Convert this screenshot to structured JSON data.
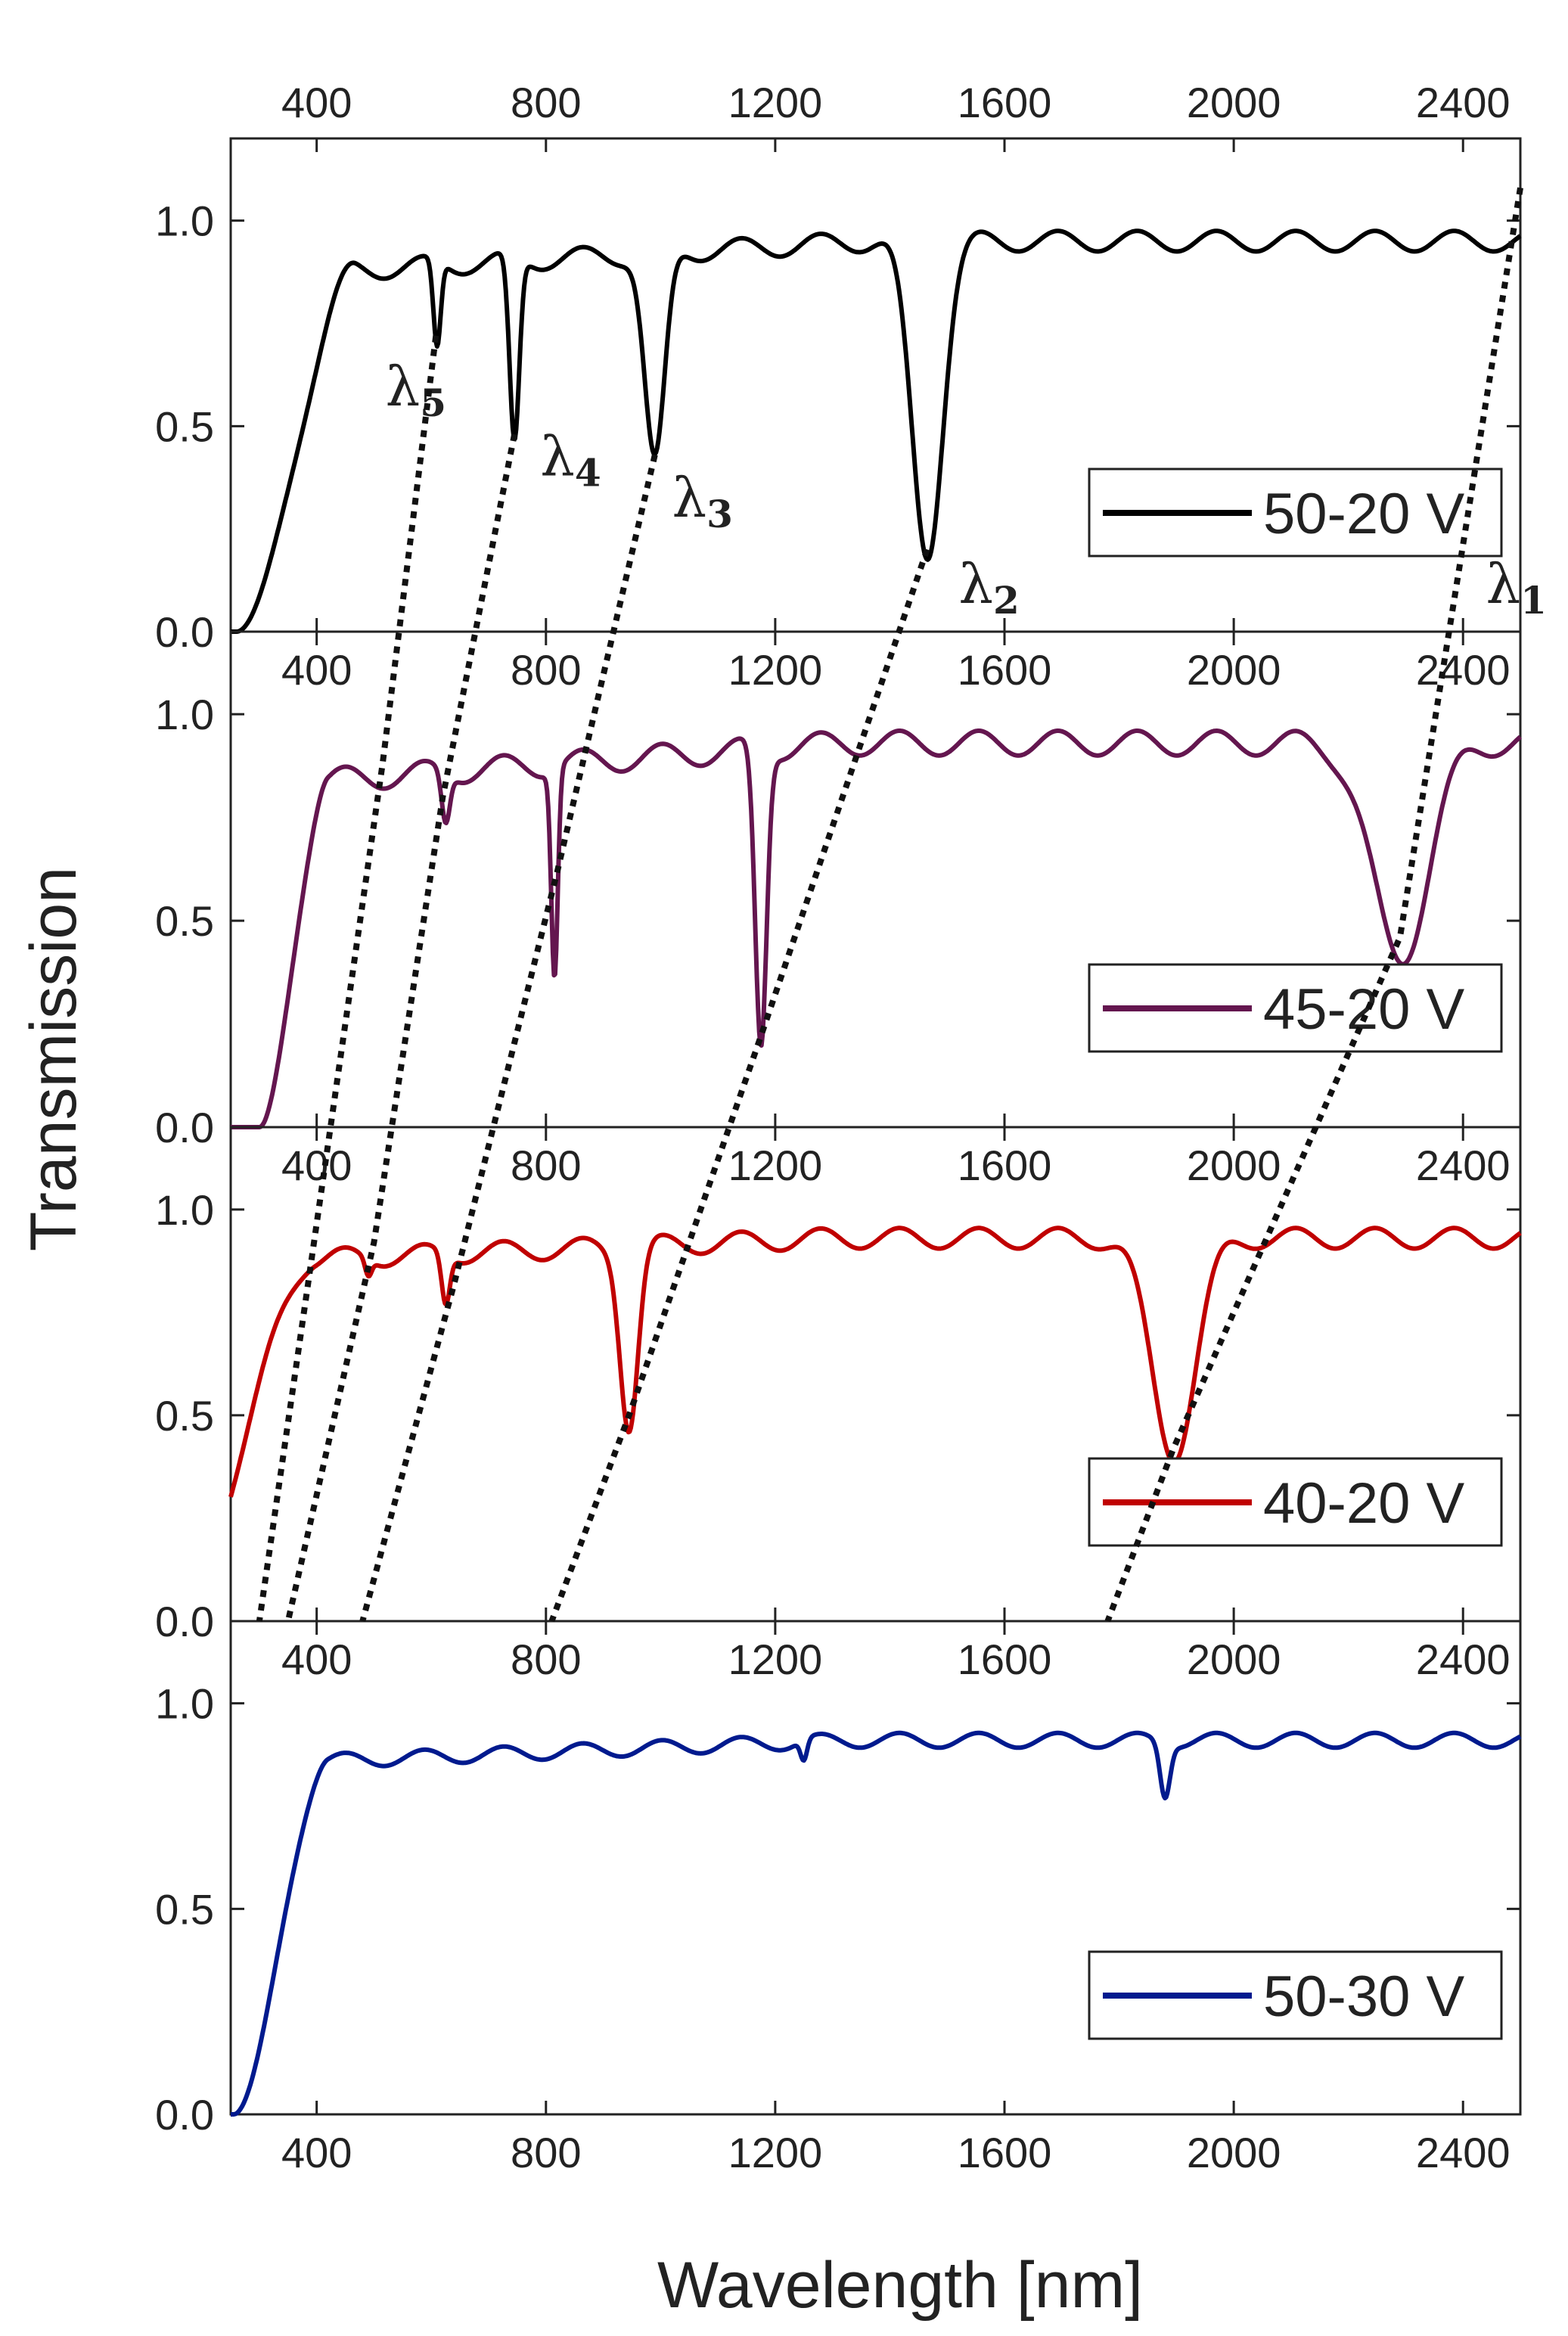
{
  "chart_data": {
    "type": "line",
    "layout": "stacked-panels",
    "ylabel": "Transmission",
    "xlabel": "Wavelength [nm]",
    "x_range": [
      250,
      2500
    ],
    "x_ticks": [
      400,
      800,
      1200,
      1600,
      2000,
      2400
    ],
    "x_tick_labels": [
      "400",
      "800",
      "1200",
      "1600",
      "2000",
      "2400"
    ],
    "y_range": [
      0.0,
      1.2
    ],
    "y_ticks": [
      0.0,
      0.5,
      1.0
    ],
    "y_tick_labels": [
      "0.0",
      "0.5",
      "1.0"
    ],
    "panels": [
      {
        "legend": "50-20 V",
        "color": "#000000",
        "baseline": 0.95,
        "ripple": 0.025,
        "rise": {
          "start": 260,
          "end": 470,
          "plateau": 0.88
        },
        "dips": [
          {
            "center": 610,
            "depth": 0.21,
            "width": 9
          },
          {
            "center": 745,
            "depth": 0.45,
            "width": 12
          },
          {
            "center": 990,
            "depth": 0.51,
            "width": 25
          },
          {
            "center": 1465,
            "depth": 0.76,
            "width": 38
          }
        ],
        "annotations": [
          {
            "base": "λ",
            "sub": "5",
            "x": 520,
            "y": 0.55
          },
          {
            "base": "λ",
            "sub": "4",
            "x": 790,
            "y": 0.38
          },
          {
            "base": "λ",
            "sub": "3",
            "x": 1020,
            "y": 0.28
          },
          {
            "base": "λ",
            "sub": "2",
            "x": 1520,
            "y": 0.07
          },
          {
            "base": "λ",
            "sub": "1",
            "x": 2440,
            "y": 0.07
          }
        ]
      },
      {
        "legend": "45-20 V",
        "color": "#64164f",
        "baseline": 0.93,
        "ripple": 0.03,
        "rise": {
          "start": 300,
          "end": 420,
          "plateau": 0.84
        },
        "dips": [
          {
            "center": 625,
            "depth": 0.12,
            "width": 10
          },
          {
            "center": 815,
            "depth": 0.5,
            "width": 8
          },
          {
            "center": 1175,
            "depth": 0.72,
            "width": 14
          },
          {
            "center": 2290,
            "depth": 0.52,
            "width": 70
          }
        ],
        "annotations": []
      },
      {
        "legend": "40-20 V",
        "color": "#c00000",
        "baseline": 0.93,
        "ripple": 0.025,
        "rise": {
          "start": 150,
          "end": 400,
          "plateau": 0.88
        },
        "dips": [
          {
            "center": 490,
            "depth": 0.04,
            "width": 8
          },
          {
            "center": 625,
            "depth": 0.12,
            "width": 10
          },
          {
            "center": 945,
            "depth": 0.43,
            "width": 22
          },
          {
            "center": 1895,
            "depth": 0.52,
            "width": 55
          }
        ],
        "annotations": []
      },
      {
        "legend": "50-30 V",
        "color": "#001a8e",
        "baseline": 0.91,
        "ripple": 0.018,
        "rise": {
          "start": 255,
          "end": 420,
          "plateau": 0.86
        },
        "dips": [
          {
            "center": 1880,
            "depth": 0.13,
            "width": 12
          },
          {
            "center": 1250,
            "depth": 0.05,
            "width": 8
          }
        ],
        "annotations": []
      }
    ],
    "guide_lines": [
      [
        [
          608,
          0.72
        ],
        [
          515,
          0.88
        ],
        [
          385,
          0.82
        ],
        [
          300,
          0.0
        ]
      ],
      [
        [
          745,
          0.48
        ],
        [
          620,
          0.8
        ],
        [
          500,
          0.92
        ],
        [
          350,
          0.0
        ]
      ],
      [
        [
          990,
          0.43
        ],
        [
          820,
          0.62
        ],
        [
          640,
          0.82
        ],
        [
          480,
          0.0
        ]
      ],
      [
        [
          1465,
          0.2
        ],
        [
          1175,
          0.22
        ],
        [
          945,
          0.5
        ],
        [
          810,
          0.0
        ]
      ],
      [
        [
          2500,
          1.08
        ],
        [
          2290,
          0.46
        ],
        [
          1895,
          0.42
        ],
        [
          1780,
          0.0
        ]
      ]
    ]
  }
}
